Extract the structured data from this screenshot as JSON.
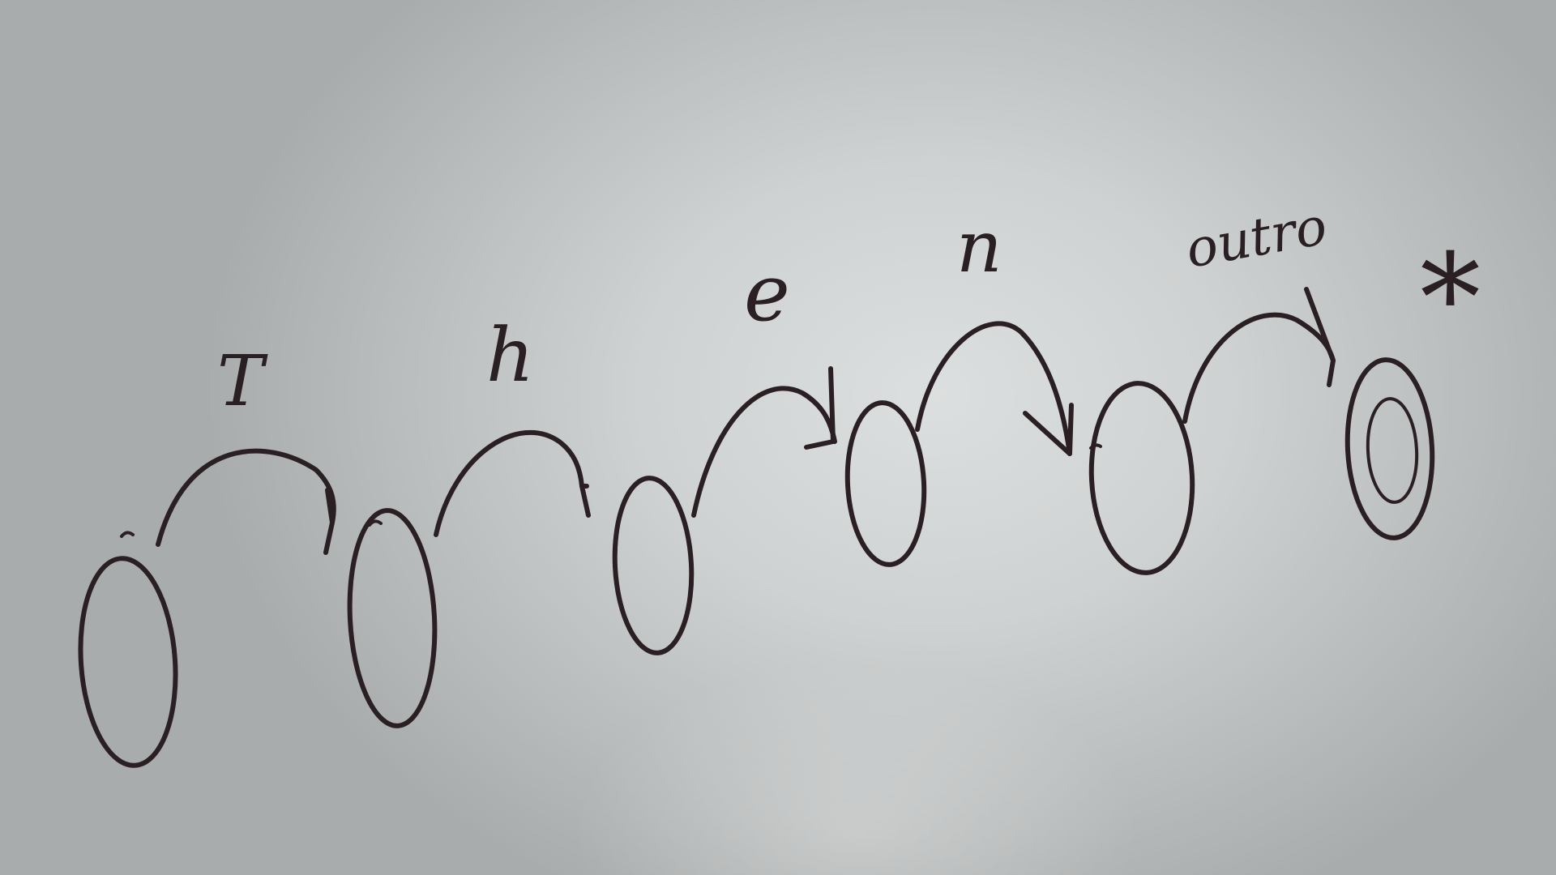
{
  "diagram": {
    "states": [
      {
        "id": "q0",
        "accepting": false
      },
      {
        "id": "q1",
        "accepting": false
      },
      {
        "id": "q2",
        "accepting": false
      },
      {
        "id": "q3",
        "accepting": false
      },
      {
        "id": "q4",
        "accepting": false
      },
      {
        "id": "q5",
        "accepting": true
      }
    ],
    "transitions": [
      {
        "from": "q0",
        "to": "q1",
        "label": "T"
      },
      {
        "from": "q1",
        "to": "q2",
        "label": "h"
      },
      {
        "from": "q2",
        "to": "q3",
        "label": "e"
      },
      {
        "from": "q3",
        "to": "q4",
        "label": "n"
      },
      {
        "from": "q4",
        "to": "q5",
        "label": "outro"
      }
    ],
    "accept_mark": "*"
  }
}
